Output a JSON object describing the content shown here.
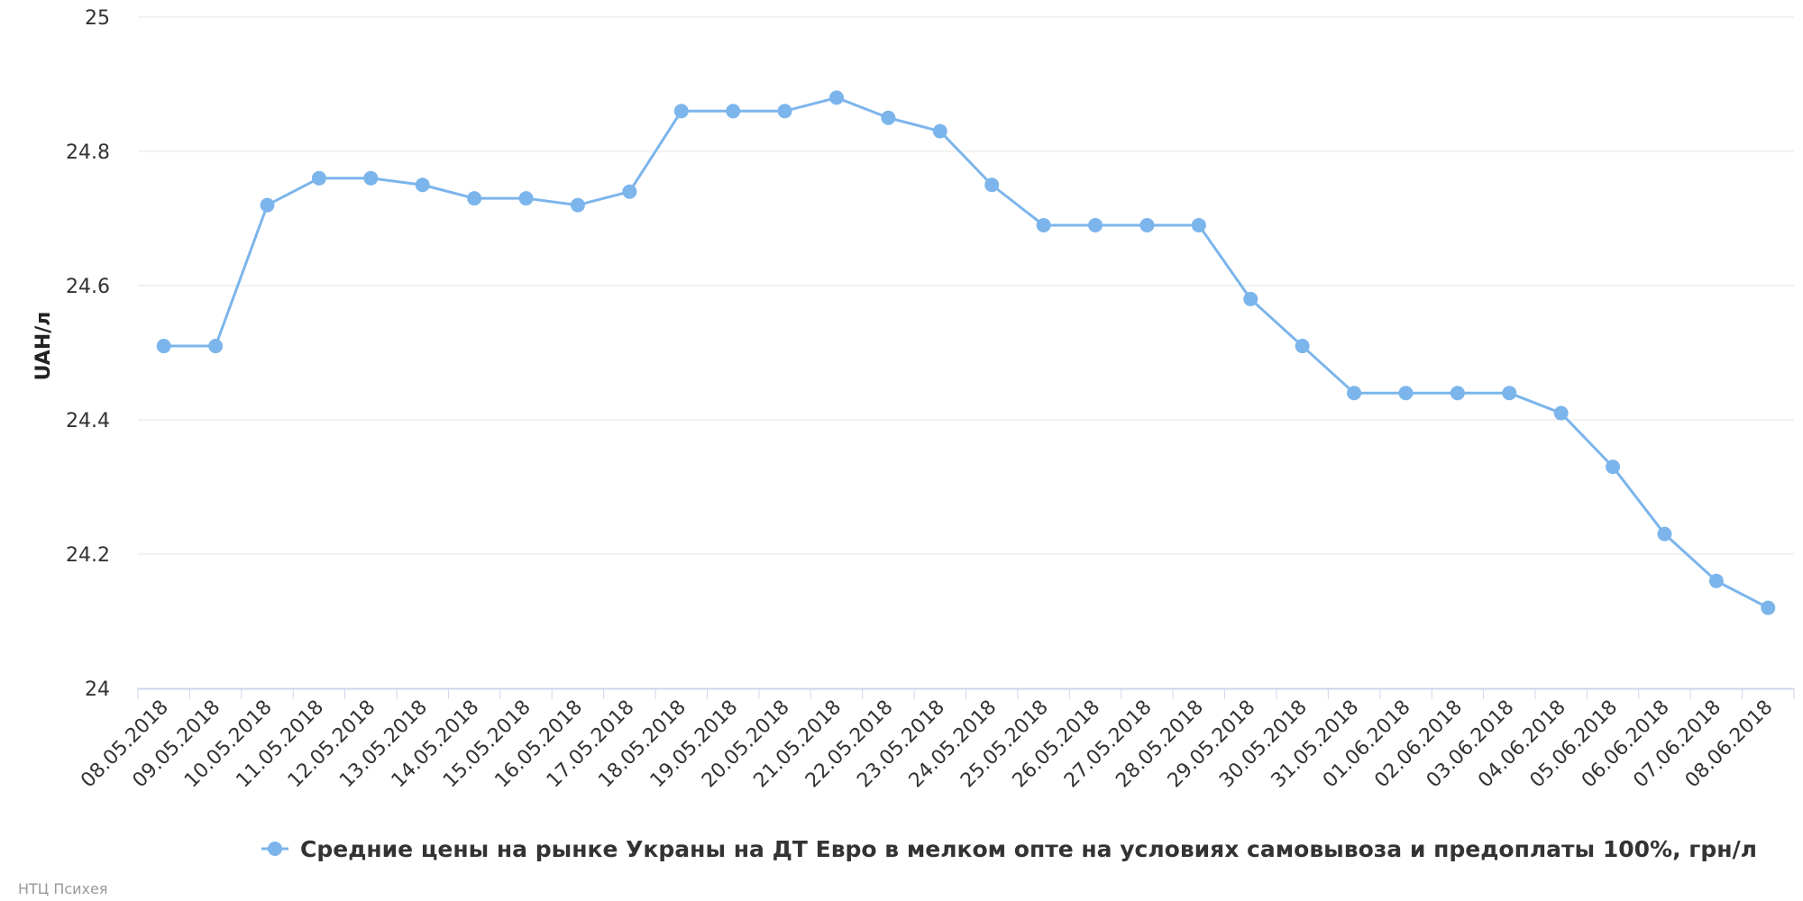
{
  "chart_data": {
    "type": "line",
    "title": "",
    "xlabel": "",
    "ylabel": "UAH/л",
    "ylim": [
      24,
      25
    ],
    "yticks": [
      "24",
      "24.2",
      "24.4",
      "24.6",
      "24.8",
      "25"
    ],
    "ytick_values": [
      24,
      24.2,
      24.4,
      24.6,
      24.8,
      25
    ],
    "grid": true,
    "legend": "bottom-center",
    "categories": [
      "08.05.2018",
      "09.05.2018",
      "10.05.2018",
      "11.05.2018",
      "12.05.2018",
      "13.05.2018",
      "14.05.2018",
      "15.05.2018",
      "16.05.2018",
      "17.05.2018",
      "18.05.2018",
      "19.05.2018",
      "20.05.2018",
      "21.05.2018",
      "22.05.2018",
      "23.05.2018",
      "24.05.2018",
      "25.05.2018",
      "26.05.2018",
      "27.05.2018",
      "28.05.2018",
      "29.05.2018",
      "30.05.2018",
      "31.05.2018",
      "01.06.2018",
      "02.06.2018",
      "03.06.2018",
      "04.06.2018",
      "05.06.2018",
      "06.06.2018",
      "07.06.2018",
      "08.06.2018"
    ],
    "series": [
      {
        "name": "Средние цены на рынке Украны на ДТ Евро в мелком опте на условиях самовывоза и предоплаты 100%, грн/л",
        "color": "#7cb5ec",
        "values": [
          24.51,
          24.51,
          24.72,
          24.76,
          24.76,
          24.75,
          24.73,
          24.73,
          24.72,
          24.74,
          24.86,
          24.86,
          24.86,
          24.88,
          24.85,
          24.83,
          24.75,
          24.69,
          24.69,
          24.69,
          24.69,
          24.58,
          24.51,
          24.44,
          24.44,
          24.44,
          24.44,
          24.41,
          24.33,
          24.23,
          24.16,
          24.12
        ]
      }
    ]
  },
  "credit": "НТЦ Психея",
  "colors": {
    "grid": "#e6e6e6",
    "axis": "#ccd6eb",
    "series": "#7cb5ec"
  }
}
